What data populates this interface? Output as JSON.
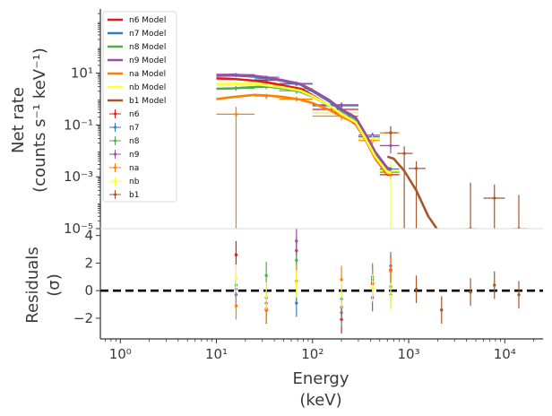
{
  "chart_data": [
    {
      "type": "scatter",
      "panel": "spectrum",
      "ylabel_line1": "Net rate",
      "ylabel_line2": "(counts s⁻¹ keV⁻¹)",
      "y_ticks": [
        {
          "value": 1e-05,
          "label": "10⁻⁵"
        },
        {
          "value": 0.001,
          "label": "10⁻³"
        },
        {
          "value": 0.1,
          "label": "10⁻¹"
        },
        {
          "value": 10,
          "label": "10¹"
        }
      ],
      "xscale": "log",
      "yscale": "log",
      "xlim": [
        0.62,
        25000
      ],
      "ylim": [
        1e-05,
        3000
      ],
      "legend_placement": "upper-left",
      "model_series": [
        {
          "name": "n6 Model",
          "color": "#e41a1c",
          "points": [
            [
              10,
              6.3
            ],
            [
              15,
              6.0
            ],
            [
              25,
              5.1
            ],
            [
              35,
              4.3
            ],
            [
              50,
              3.3
            ],
            [
              75,
              2.5
            ],
            [
              100,
              1.4
            ],
            [
              150,
              0.55
            ],
            [
              200,
              0.24
            ],
            [
              280,
              0.11
            ],
            [
              350,
              0.03
            ],
            [
              450,
              0.005
            ],
            [
              600,
              0.0012
            ],
            [
              660,
              0.0012
            ]
          ]
        },
        {
          "name": "n7 Model",
          "color": "#377eb8",
          "points": [
            [
              10,
              8.0
            ],
            [
              15,
              8.2
            ],
            [
              25,
              7.3
            ],
            [
              35,
              6.3
            ],
            [
              50,
              5.0
            ],
            [
              75,
              3.6
            ],
            [
              100,
              2.0
            ],
            [
              150,
              0.8
            ],
            [
              200,
              0.36
            ],
            [
              280,
              0.18
            ],
            [
              350,
              0.045
            ],
            [
              450,
              0.008
            ],
            [
              600,
              0.002
            ],
            [
              660,
              0.0018
            ]
          ]
        },
        {
          "name": "n8 Model",
          "color": "#4daf4a",
          "points": [
            [
              10,
              2.5
            ],
            [
              15,
              2.6
            ],
            [
              25,
              2.9
            ],
            [
              35,
              3.0
            ],
            [
              50,
              2.6
            ],
            [
              75,
              1.9
            ],
            [
              100,
              1.25
            ],
            [
              150,
              0.55
            ],
            [
              200,
              0.27
            ],
            [
              280,
              0.14
            ],
            [
              350,
              0.035
            ],
            [
              450,
              0.006
            ],
            [
              600,
              0.0015
            ],
            [
              660,
              0.0014
            ]
          ]
        },
        {
          "name": "n9 Model",
          "color": "#984ea3",
          "points": [
            [
              10,
              8.5
            ],
            [
              15,
              8.7
            ],
            [
              25,
              7.8
            ],
            [
              35,
              6.7
            ],
            [
              50,
              5.3
            ],
            [
              75,
              3.8
            ],
            [
              100,
              2.2
            ],
            [
              150,
              0.9
            ],
            [
              200,
              0.4
            ],
            [
              280,
              0.2
            ],
            [
              350,
              0.05
            ],
            [
              450,
              0.009
            ],
            [
              600,
              0.0022
            ],
            [
              660,
              0.002
            ]
          ]
        },
        {
          "name": "na Model",
          "color": "#ff7f00",
          "points": [
            [
              10,
              1.0
            ],
            [
              15,
              1.2
            ],
            [
              25,
              1.45
            ],
            [
              35,
              1.35
            ],
            [
              50,
              1.2
            ],
            [
              75,
              0.95
            ],
            [
              100,
              0.7
            ],
            [
              150,
              0.38
            ],
            [
              200,
              0.21
            ],
            [
              280,
              0.12
            ],
            [
              350,
              0.03
            ],
            [
              450,
              0.005
            ],
            [
              600,
              0.0013
            ],
            [
              660,
              0.0012
            ]
          ]
        },
        {
          "name": "nb Model",
          "color": "#ffff33",
          "points": [
            [
              10,
              3.7
            ],
            [
              15,
              3.9
            ],
            [
              25,
              3.8
            ],
            [
              35,
              3.3
            ],
            [
              50,
              2.8
            ],
            [
              75,
              2.1
            ],
            [
              100,
              1.3
            ],
            [
              150,
              0.56
            ],
            [
              200,
              0.26
            ],
            [
              280,
              0.13
            ],
            [
              350,
              0.033
            ],
            [
              450,
              0.006
            ],
            [
              600,
              0.0015
            ],
            [
              660,
              0.0014
            ]
          ]
        },
        {
          "name": "b1 Model",
          "color": "#a65628",
          "points": [
            [
              600,
              0.006
            ],
            [
              700,
              0.005
            ],
            [
              900,
              0.0017
            ],
            [
              1200,
              0.0003
            ],
            [
              1600,
              3e-05
            ],
            [
              2000,
              9e-06
            ]
          ]
        }
      ],
      "data_series": [
        {
          "name": "n6",
          "color": "#e41a1c",
          "points": [
            [
              16,
              8.5,
              10,
              25,
              7,
              10
            ],
            [
              33,
              5.3,
              25,
              45,
              4,
              6.5
            ],
            [
              68,
              2.5,
              45,
              100,
              1.8,
              3.2
            ],
            [
              200,
              0.4,
              100,
              300,
              0.3,
              0.6
            ],
            [
              420,
              0.03,
              300,
              500,
              0.02,
              0.04
            ],
            [
              650,
              0.0012,
              500,
              800,
              0.0008,
              0.0018
            ]
          ]
        },
        {
          "name": "n7",
          "color": "#377eb8",
          "points": [
            [
              16,
              8.3,
              10,
              25,
              7,
              10
            ],
            [
              33,
              6.0,
              25,
              45,
              5,
              7
            ],
            [
              68,
              3.8,
              45,
              100,
              3,
              4.6
            ],
            [
              200,
              0.55,
              100,
              300,
              0.4,
              0.7
            ],
            [
              420,
              0.035,
              300,
              500,
              0.025,
              0.045
            ],
            [
              650,
              0.002,
              500,
              800,
              0.001,
              0.003
            ]
          ]
        },
        {
          "name": "n8",
          "color": "#4daf4a",
          "points": [
            [
              16,
              2.6,
              10,
              25,
              2.1,
              3.2
            ],
            [
              33,
              3.0,
              25,
              45,
              2.4,
              3.6
            ],
            [
              68,
              2.1,
              45,
              100,
              1.6,
              2.6
            ],
            [
              200,
              0.3,
              100,
              300,
              0.22,
              0.4
            ],
            [
              420,
              0.04,
              300,
              500,
              0.03,
              0.05
            ],
            [
              650,
              0.0015,
              500,
              800,
              0.0008,
              0.0025
            ]
          ]
        },
        {
          "name": "n9",
          "color": "#984ea3",
          "points": [
            [
              16,
              8.8,
              10,
              25,
              7.5,
              10
            ],
            [
              33,
              7.0,
              25,
              45,
              6,
              8
            ],
            [
              68,
              4.0,
              45,
              100,
              3.2,
              4.8
            ],
            [
              200,
              0.6,
              100,
              300,
              0.45,
              0.75
            ],
            [
              420,
              0.04,
              300,
              500,
              0.03,
              0.05
            ],
            [
              650,
              0.016,
              500,
              800,
              0.008,
              0.025
            ]
          ]
        },
        {
          "name": "na",
          "color": "#ff7f00",
          "points": [
            [
              16,
              0.26,
              10,
              25,
              1e-05,
              0.5
            ],
            [
              33,
              1.3,
              25,
              45,
              1.0,
              1.6
            ],
            [
              68,
              1.0,
              45,
              100,
              0.8,
              1.25
            ],
            [
              200,
              0.22,
              100,
              300,
              0.15,
              0.3
            ],
            [
              420,
              0.025,
              300,
              500,
              0.018,
              0.032
            ],
            [
              650,
              0.05,
              500,
              800,
              0.02,
              0.08
            ]
          ]
        },
        {
          "name": "nb",
          "color": "#ffff33",
          "points": [
            [
              16,
              4.0,
              10,
              25,
              3.4,
              4.7
            ],
            [
              33,
              4.1,
              25,
              45,
              3.5,
              4.7
            ],
            [
              68,
              2.7,
              45,
              100,
              2.2,
              3.2
            ],
            [
              200,
              0.3,
              100,
              300,
              0.22,
              0.4
            ],
            [
              420,
              0.03,
              300,
              500,
              0.022,
              0.04
            ],
            [
              650,
              0.0017,
              500,
              800,
              1e-05,
              0.004
            ]
          ]
        },
        {
          "name": "b1",
          "color": "#a65628",
          "points": [
            [
              650,
              0.05,
              560,
              760,
              0.02,
              0.09
            ],
            [
              900,
              0.008,
              760,
              1100,
              1e-05,
              0.015
            ],
            [
              1200,
              0.0021,
              1000,
              1500,
              1e-05,
              0.004
            ],
            [
              4400,
              1e-05,
              3800,
              5100,
              1e-05,
              0.0006
            ],
            [
              7800,
              0.00015,
              6000,
              10000,
              1e-05,
              0.0005
            ],
            [
              14000,
              1e-05,
              12000,
              17000,
              1e-05,
              0.0002
            ]
          ]
        }
      ]
    },
    {
      "type": "scatter",
      "panel": "residuals",
      "xlabel_line1": "Energy",
      "xlabel_line2": "(keV)",
      "ylabel_line1": "Residuals",
      "ylabel_line2": "(σ)",
      "x_ticks": [
        {
          "value": 1,
          "label": "10⁰"
        },
        {
          "value": 10,
          "label": "10¹"
        },
        {
          "value": 100,
          "label": "10²"
        },
        {
          "value": 1000,
          "label": "10³"
        },
        {
          "value": 10000,
          "label": "10⁴"
        }
      ],
      "y_ticks": [
        {
          "value": -2,
          "label": "−2"
        },
        {
          "value": 0,
          "label": "0"
        },
        {
          "value": 2,
          "label": "2"
        },
        {
          "value": 4,
          "label": "4"
        }
      ],
      "xscale": "log",
      "xlim": [
        0.62,
        25000
      ],
      "ylim": [
        -3.5,
        4.5
      ],
      "zero_line": 0,
      "series": [
        {
          "name": "n6",
          "color": "#e41a1c",
          "points": [
            [
              16,
              2.6,
              1.0
            ],
            [
              33,
              -1.4,
              1.0
            ],
            [
              68,
              2.9,
              1.0
            ],
            [
              200,
              -2.1,
              1.0
            ],
            [
              420,
              0.5,
              1.0
            ],
            [
              650,
              1.5,
              1.0
            ]
          ]
        },
        {
          "name": "n7",
          "color": "#377eb8",
          "points": [
            [
              16,
              -0.3,
              1.0
            ],
            [
              33,
              -0.5,
              1.0
            ],
            [
              68,
              -0.9,
              1.0
            ],
            [
              200,
              -0.6,
              1.0
            ],
            [
              420,
              0.8,
              1.0
            ],
            [
              650,
              -0.3,
              1.0
            ]
          ]
        },
        {
          "name": "n8",
          "color": "#4daf4a",
          "points": [
            [
              16,
              0.4,
              1.0
            ],
            [
              33,
              1.1,
              1.0
            ],
            [
              68,
              2.2,
              1.0
            ],
            [
              200,
              -1.6,
              1.0
            ],
            [
              420,
              1.0,
              1.0
            ],
            [
              650,
              0.3,
              1.0
            ]
          ]
        },
        {
          "name": "n9",
          "color": "#984ea3",
          "points": [
            [
              16,
              0.1,
              1.0
            ],
            [
              33,
              -0.9,
              1.0
            ],
            [
              68,
              3.6,
              1.0
            ],
            [
              200,
              -1.2,
              1.0
            ],
            [
              420,
              -0.5,
              1.0
            ],
            [
              650,
              1.8,
              1.0
            ]
          ]
        },
        {
          "name": "na",
          "color": "#ff7f00",
          "points": [
            [
              16,
              -1.1,
              1.0
            ],
            [
              33,
              -1.3,
              1.0
            ],
            [
              68,
              0.7,
              1.0
            ],
            [
              200,
              0.8,
              1.0
            ],
            [
              420,
              0.6,
              1.0
            ],
            [
              650,
              1.4,
              1.0
            ]
          ]
        },
        {
          "name": "nb",
          "color": "#ffff33",
          "points": [
            [
              16,
              0.9,
              1.0
            ],
            [
              33,
              -0.4,
              1.0
            ],
            [
              68,
              0.5,
              1.0
            ],
            [
              200,
              -0.3,
              1.0
            ],
            [
              420,
              0.2,
              1.0
            ],
            [
              650,
              -0.4,
              1.0
            ]
          ]
        },
        {
          "name": "b1",
          "color": "#a65628",
          "points": [
            [
              1200,
              0.1,
              1.0
            ],
            [
              2200,
              -1.4,
              1.0
            ],
            [
              4400,
              -0.1,
              1.0
            ],
            [
              7800,
              0.4,
              1.0
            ],
            [
              14000,
              -0.3,
              1.0
            ]
          ]
        }
      ]
    }
  ]
}
